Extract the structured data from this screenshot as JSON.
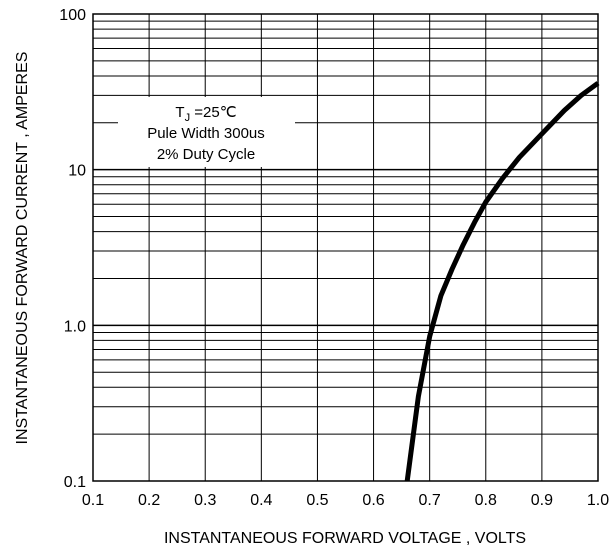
{
  "chart_data": {
    "type": "line",
    "xlabel": "INSTANTANEOUS FORWARD VOLTAGE , VOLTS",
    "ylabel": "INSTANTANEOUS FORWARD CURRENT , AMPERES",
    "x_scale": "linear",
    "y_scale": "log",
    "xlim": [
      0.1,
      1.0
    ],
    "ylim": [
      0.1,
      100
    ],
    "grid": true,
    "x_ticks": [
      "0.1",
      "0.2",
      "0.3",
      "0.4",
      "0.5",
      "0.6",
      "0.7",
      "0.8",
      "0.9",
      "1.0"
    ],
    "y_ticks": [
      "0.1",
      "1.0",
      "10",
      "100"
    ],
    "series": [
      {
        "x": [
          0.66,
          0.68,
          0.7,
          0.72,
          0.74,
          0.76,
          0.78,
          0.8,
          0.83,
          0.86,
          0.9,
          0.94,
          0.97,
          1.0
        ],
        "y": [
          0.1,
          0.35,
          0.85,
          1.55,
          2.3,
          3.3,
          4.6,
          6.2,
          8.8,
          12,
          17,
          24,
          30,
          36
        ]
      }
    ],
    "annotation": {
      "line1": "T",
      "line1_sub": "J",
      "line1_rest": " =25℃",
      "line2": "Pule Width 300us",
      "line3": "2% Duty Cycle"
    }
  }
}
